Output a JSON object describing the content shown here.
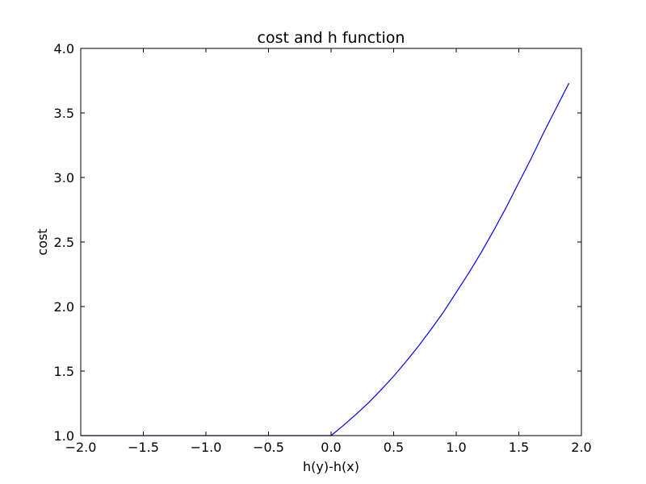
{
  "chart_data": {
    "type": "line",
    "title": "cost and h function",
    "xlabel": "h(y)-h(x)",
    "ylabel": "cost",
    "xlim": [
      -2.0,
      2.0
    ],
    "ylim": [
      1.0,
      4.0
    ],
    "xticks": [
      "−2.0",
      "−1.5",
      "−1.0",
      "−0.5",
      "0.0",
      "0.5",
      "1.0",
      "1.5",
      "2.0"
    ],
    "yticks": [
      "1.0",
      "1.5",
      "2.0",
      "2.5",
      "3.0",
      "3.5",
      "4.0"
    ],
    "grid": false,
    "legend": "none",
    "series": [
      {
        "color": "#0000ff",
        "x": [
          -2.0,
          -1.5,
          -1.0,
          -0.5,
          0.0,
          0.1,
          0.2,
          0.3,
          0.4,
          0.5,
          0.6,
          0.7,
          0.8,
          0.9,
          1.0,
          1.1,
          1.2,
          1.3,
          1.4,
          1.5,
          1.6,
          1.7,
          1.8,
          1.9
        ],
        "y": [
          1.0,
          1.0,
          1.0,
          1.0,
          1.0,
          1.08,
          1.165,
          1.255,
          1.355,
          1.46,
          1.575,
          1.695,
          1.825,
          1.96,
          2.11,
          2.26,
          2.42,
          2.59,
          2.77,
          2.96,
          3.15,
          3.35,
          3.54,
          3.73
        ]
      }
    ]
  }
}
